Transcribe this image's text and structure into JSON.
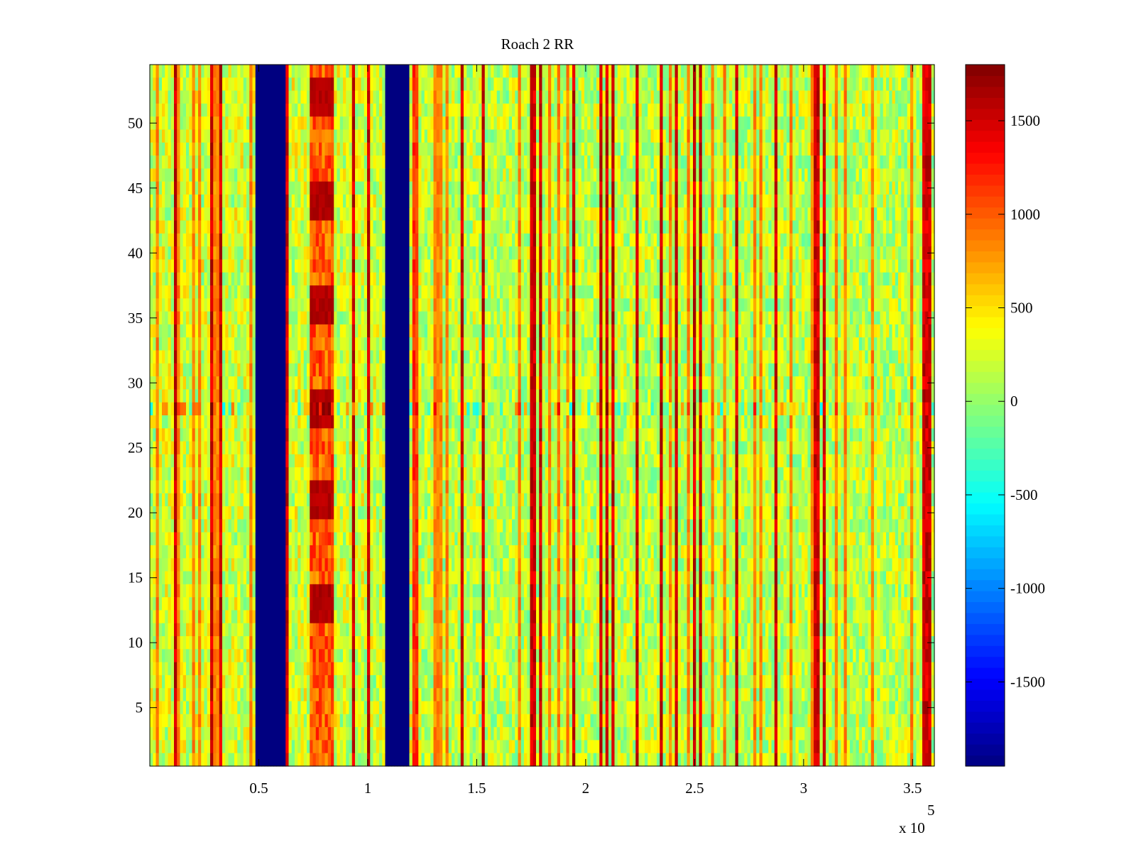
{
  "chart_data": {
    "type": "heatmap",
    "title": "Roach 2 RR",
    "xlabel": "",
    "ylabel": "",
    "x_exponent_label": "x 10",
    "x_exponent_power": "5",
    "xlim": [
      0.0,
      3.6
    ],
    "ylim": [
      0.5,
      54.5
    ],
    "rows": 54,
    "x_ticks": [
      0.5,
      1,
      1.5,
      2,
      2.5,
      3,
      3.5
    ],
    "x_tick_labels": [
      "0.5",
      "1",
      "1.5",
      "2",
      "2.5",
      "3",
      "3.5"
    ],
    "y_ticks": [
      5,
      10,
      15,
      20,
      25,
      30,
      35,
      40,
      45,
      50
    ],
    "y_tick_labels": [
      "5",
      "10",
      "15",
      "20",
      "25",
      "30",
      "35",
      "40",
      "45",
      "50"
    ],
    "colorbar": {
      "colormap": "jet",
      "clim": [
        -1950,
        1800
      ],
      "ticks": [
        -1500,
        -1000,
        -500,
        0,
        500,
        1000,
        1500
      ],
      "tick_labels": [
        "-1500",
        "-1000",
        "-500",
        "0",
        "500",
        "1000",
        "1500"
      ]
    },
    "features": {
      "background_level": [
        -200,
        500
      ],
      "blanked_bands_x": [
        [
          0.49,
          0.62
        ],
        [
          1.08,
          1.19
        ]
      ],
      "blanked_value": -1950,
      "hot_band_x": [
        0.73,
        0.84
      ],
      "hot_band_level": 1100,
      "hot_rows": [
        52,
        44,
        36,
        28,
        21,
        13
      ],
      "hot_rows_level": 1700,
      "anomalous_row": 28,
      "edge_band_x": [
        1.2,
        1.23
      ],
      "edge_band_level": 1200
    }
  }
}
